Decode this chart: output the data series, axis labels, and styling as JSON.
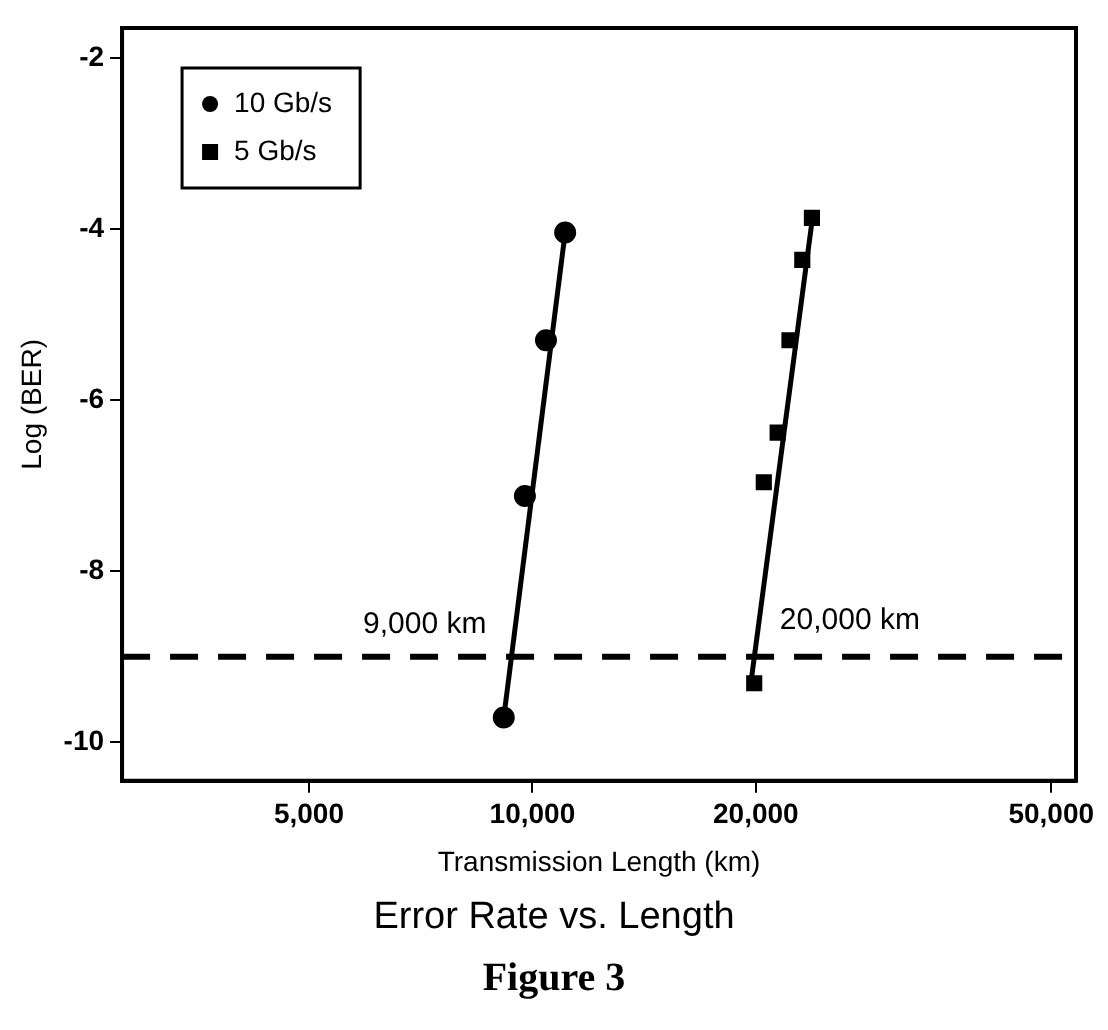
{
  "chart_data": {
    "type": "scatter",
    "title": "Error Rate vs. Length",
    "subtitle": "Figure 3",
    "xlabel": "Transmission Length (km)",
    "ylabel": "Log (BER)",
    "log": "x",
    "xlim": [
      2800,
      54000
    ],
    "ylim": [
      -10.45,
      -1.65
    ],
    "xticks": [
      {
        "value": 5000,
        "label": "5,000"
      },
      {
        "value": 10000,
        "label": "10,000"
      },
      {
        "value": 20000,
        "label": "20,000"
      },
      {
        "value": 50000,
        "label": "50,000"
      }
    ],
    "yticks": [
      -2,
      -4,
      -6,
      -8,
      -10
    ],
    "grid": false,
    "legend": "top left",
    "series": [
      {
        "name": "10 Gb/s",
        "color": "#000000",
        "marker": "circle",
        "x": [
          9150,
          9770,
          10430,
          11070
        ],
        "values": [
          -9.71,
          -7.12,
          -5.3,
          -4.04
        ]
      },
      {
        "name": "5 Gb/s",
        "color": "#000000",
        "marker": "square",
        "x": [
          19900,
          20500,
          21400,
          22200,
          23100,
          23800
        ],
        "values": [
          -9.31,
          -6.96,
          -6.38,
          -5.3,
          -4.36,
          -3.87
        ]
      },
      {
        "type": "line",
        "color": "#000000",
        "marker": "none",
        "x": [
          9150,
          11070
        ],
        "values": [
          -9.71,
          -4.04
        ]
      },
      {
        "type": "line",
        "color": "#000000",
        "marker": "none",
        "x": [
          19700,
          23900
        ],
        "values": [
          -9.3,
          -3.8
        ]
      }
    ],
    "ref_lines": [
      {
        "axis": "y",
        "value": -9,
        "color": "#000000",
        "line_style": "dashed"
      }
    ],
    "annotations": [
      {
        "text": "9,000 km",
        "x": 9000,
        "y": -9
      },
      {
        "text": "20,000 km",
        "x": 20000,
        "y": -9
      }
    ]
  }
}
